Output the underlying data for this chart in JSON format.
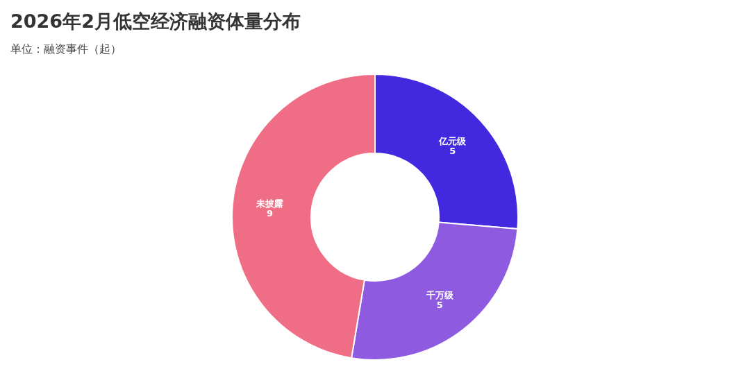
{
  "chart_data": {
    "type": "donut",
    "title": "2026年2月低空经济融资体量分布",
    "subtitle": "单位：融资事件（起）",
    "categories": [
      "亿元级",
      "千万级",
      "未披露"
    ],
    "values": [
      5,
      5,
      9
    ],
    "colors": [
      "#4229e0",
      "#8e5ae0",
      "#f06e85"
    ],
    "data_labels": true
  }
}
